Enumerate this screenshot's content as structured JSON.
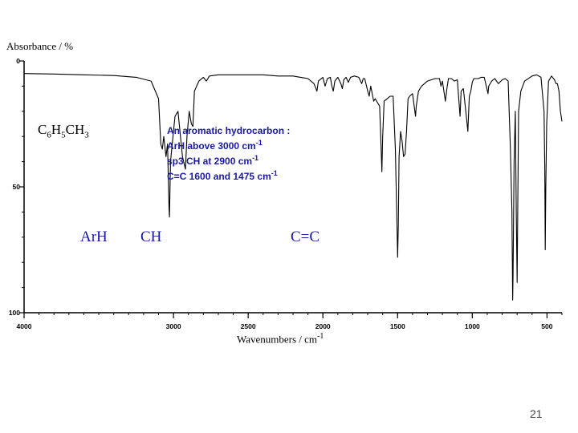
{
  "slide": {
    "page_number": "21",
    "compound": {
      "parts": [
        "C",
        "6",
        "H",
        "5",
        "CH",
        "3"
      ]
    },
    "region_labels": {
      "arh": "ArH",
      "ch": "CH",
      "cc": "C=C"
    },
    "note_lines": [
      {
        "text": "An aromatic hydrocarbon :",
        "sup": ""
      },
      {
        "text": "ArH above 3000 cm",
        "sup": "-1"
      },
      {
        "text": "sp3 CH at 2900 cm",
        "sup": "-1"
      },
      {
        "text": "C=C 1600 and 1475 cm",
        "sup": "-1"
      }
    ],
    "colors": {
      "annotation": "#1a1aa0",
      "axis": "#000000",
      "trace": "#000000"
    }
  },
  "chart_data": {
    "type": "line",
    "title": "",
    "ylabel": "Absorbance / %",
    "xlabel": {
      "text": "Wavenumbers / cm",
      "sup": "-1"
    },
    "xlim": [
      4000,
      400
    ],
    "ylim": [
      0,
      100
    ],
    "y_inverted": true,
    "x_ticks": [
      4000,
      3000,
      2500,
      2000,
      1500,
      1000,
      500
    ],
    "x_tick_labels": [
      "4000",
      "3000",
      "2500",
      "2000",
      "1500",
      "1000",
      "500"
    ],
    "y_ticks": [
      0,
      50,
      100
    ],
    "y_tick_labels": [
      "0",
      "50",
      "100"
    ],
    "grid": false,
    "series": [
      {
        "points": [
          [
            4000,
            5
          ],
          [
            3800,
            5.2
          ],
          [
            3600,
            5.5
          ],
          [
            3400,
            5.8
          ],
          [
            3250,
            6.5
          ],
          [
            3150,
            8
          ],
          [
            3100,
            15
          ],
          [
            3085,
            33
          ],
          [
            3075,
            35
          ],
          [
            3065,
            30
          ],
          [
            3050,
            38
          ],
          [
            3040,
            33
          ],
          [
            3030,
            58
          ],
          [
            3027,
            62
          ],
          [
            3020,
            40
          ],
          [
            3000,
            28
          ],
          [
            2990,
            22
          ],
          [
            2970,
            20
          ],
          [
            2940,
            38
          ],
          [
            2920,
            43
          ],
          [
            2910,
            30
          ],
          [
            2895,
            20
          ],
          [
            2880,
            25
          ],
          [
            2870,
            26
          ],
          [
            2860,
            12
          ],
          [
            2830,
            8
          ],
          [
            2800,
            6.5
          ],
          [
            2780,
            8
          ],
          [
            2760,
            6
          ],
          [
            2700,
            5.5
          ],
          [
            2600,
            5.5
          ],
          [
            2500,
            5.5
          ],
          [
            2400,
            5.5
          ],
          [
            2300,
            6
          ],
          [
            2200,
            6
          ],
          [
            2150,
            6.5
          ],
          [
            2100,
            7
          ],
          [
            2060,
            9
          ],
          [
            2040,
            12
          ],
          [
            2030,
            8
          ],
          [
            2000,
            6.5
          ],
          [
            1985,
            10
          ],
          [
            1970,
            7
          ],
          [
            1950,
            6.5
          ],
          [
            1940,
            10
          ],
          [
            1930,
            12
          ],
          [
            1920,
            8
          ],
          [
            1900,
            6.5
          ],
          [
            1880,
            9
          ],
          [
            1870,
            11
          ],
          [
            1860,
            7.5
          ],
          [
            1845,
            6.5
          ],
          [
            1830,
            8.5
          ],
          [
            1815,
            6.5
          ],
          [
            1790,
            6
          ],
          [
            1760,
            6.5
          ],
          [
            1740,
            9
          ],
          [
            1730,
            7
          ],
          [
            1720,
            7
          ],
          [
            1700,
            12
          ],
          [
            1690,
            14
          ],
          [
            1680,
            10
          ],
          [
            1660,
            16
          ],
          [
            1650,
            15
          ],
          [
            1620,
            18
          ],
          [
            1610,
            35
          ],
          [
            1605,
            44
          ],
          [
            1600,
            30
          ],
          [
            1590,
            16
          ],
          [
            1570,
            15
          ],
          [
            1550,
            14
          ],
          [
            1530,
            14
          ],
          [
            1515,
            35
          ],
          [
            1505,
            62
          ],
          [
            1500,
            78
          ],
          [
            1495,
            65
          ],
          [
            1490,
            38
          ],
          [
            1480,
            28
          ],
          [
            1470,
            32
          ],
          [
            1460,
            38
          ],
          [
            1450,
            37
          ],
          [
            1440,
            28
          ],
          [
            1430,
            15
          ],
          [
            1420,
            14
          ],
          [
            1400,
            13
          ],
          [
            1380,
            22
          ],
          [
            1375,
            18
          ],
          [
            1360,
            12
          ],
          [
            1340,
            10
          ],
          [
            1300,
            8
          ],
          [
            1250,
            7
          ],
          [
            1220,
            7
          ],
          [
            1210,
            10
          ],
          [
            1200,
            8
          ],
          [
            1180,
            16
          ],
          [
            1170,
            11
          ],
          [
            1160,
            7
          ],
          [
            1140,
            7
          ],
          [
            1120,
            8
          ],
          [
            1100,
            7.5
          ],
          [
            1082,
            22
          ],
          [
            1075,
            12
          ],
          [
            1060,
            11
          ],
          [
            1040,
            22
          ],
          [
            1030,
            28
          ],
          [
            1020,
            14
          ],
          [
            1010,
            12
          ],
          [
            1000,
            8.5
          ],
          [
            990,
            7
          ],
          [
            960,
            7
          ],
          [
            940,
            6.5
          ],
          [
            920,
            6.5
          ],
          [
            895,
            13
          ],
          [
            890,
            10
          ],
          [
            870,
            8
          ],
          [
            850,
            7
          ],
          [
            825,
            9
          ],
          [
            800,
            7.5
          ],
          [
            780,
            7
          ],
          [
            760,
            8
          ],
          [
            745,
            35
          ],
          [
            735,
            60
          ],
          [
            730,
            95
          ],
          [
            727,
            85
          ],
          [
            720,
            40
          ],
          [
            712,
            20
          ],
          [
            706,
            60
          ],
          [
            700,
            88
          ],
          [
            696,
            60
          ],
          [
            690,
            20
          ],
          [
            675,
            12
          ],
          [
            650,
            8
          ],
          [
            600,
            6
          ],
          [
            570,
            5.5
          ],
          [
            540,
            6.5
          ],
          [
            520,
            20
          ],
          [
            515,
            42
          ],
          [
            512,
            75
          ],
          [
            508,
            50
          ],
          [
            502,
            25
          ],
          [
            490,
            8
          ],
          [
            470,
            6
          ],
          [
            450,
            7.5
          ],
          [
            440,
            9
          ],
          [
            430,
            9
          ],
          [
            420,
            12
          ],
          [
            410,
            20
          ],
          [
            400,
            24
          ]
        ]
      }
    ]
  }
}
